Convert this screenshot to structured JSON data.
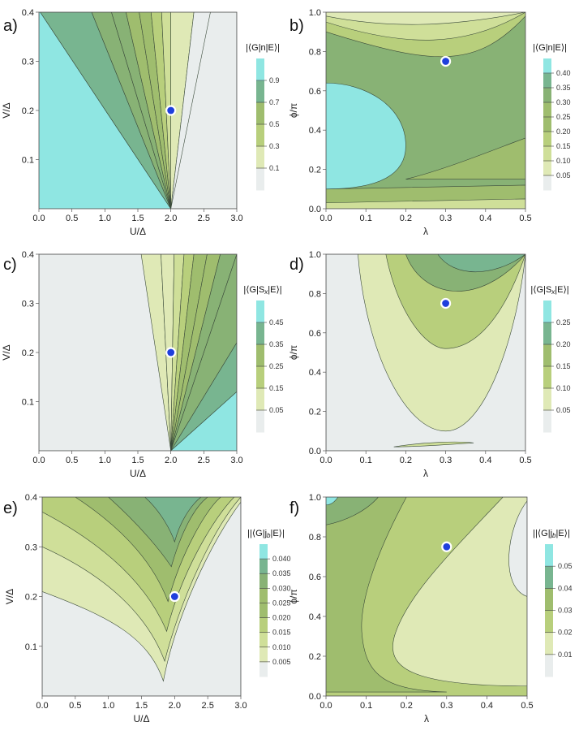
{
  "chart_data": [
    {
      "panel": "a)",
      "type": "heatmap",
      "subtype": "contour",
      "title": "|⟨G|n|E⟩|",
      "xlabel": "U/Δ",
      "ylabel": "V/Δ",
      "xlim": [
        0,
        3
      ],
      "ylim": [
        0,
        0.4
      ],
      "xticks": [
        "0.0",
        "0.5",
        "1.0",
        "1.5",
        "2.0",
        "2.5",
        "3.0"
      ],
      "yticks": [
        "0.1",
        "0.2",
        "0.3",
        "0.4"
      ],
      "colorbar_ticks": [
        "0.1",
        "0.3",
        "0.5",
        "0.7",
        "0.9"
      ],
      "marker": {
        "x": 2.0,
        "y": 0.2
      }
    },
    {
      "panel": "b)",
      "type": "heatmap",
      "subtype": "contour",
      "title": "|⟨G|n|E⟩|",
      "xlabel": "λ",
      "ylabel": "ϕ/π",
      "xlim": [
        0,
        0.5
      ],
      "ylim": [
        0,
        1.0
      ],
      "xticks": [
        "0.0",
        "0.1",
        "0.2",
        "0.3",
        "0.4",
        "0.5"
      ],
      "yticks": [
        "0.0",
        "0.2",
        "0.4",
        "0.6",
        "0.8",
        "1.0"
      ],
      "colorbar_ticks": [
        "0.05",
        "0.10",
        "0.15",
        "0.20",
        "0.25",
        "0.30",
        "0.35",
        "0.40"
      ],
      "marker": {
        "x": 0.3,
        "y": 0.75
      }
    },
    {
      "panel": "c)",
      "type": "heatmap",
      "subtype": "contour",
      "title": "|⟨G|S",
      "title_sub": "x",
      "title_end": "|E⟩|",
      "xlabel": "U/Δ",
      "ylabel": "V/Δ",
      "xlim": [
        0,
        3
      ],
      "ylim": [
        0,
        0.4
      ],
      "xticks": [
        "0.0",
        "0.5",
        "1.0",
        "1.5",
        "2.0",
        "2.5",
        "3.0"
      ],
      "yticks": [
        "0.1",
        "0.2",
        "0.3",
        "0.4"
      ],
      "colorbar_ticks": [
        "0.05",
        "0.15",
        "0.25",
        "0.35",
        "0.45"
      ],
      "marker": {
        "x": 2.0,
        "y": 0.2
      }
    },
    {
      "panel": "d)",
      "type": "heatmap",
      "subtype": "contour",
      "title": "|⟨G|S",
      "title_sub": "x",
      "title_end": "|E⟩|",
      "xlabel": "λ",
      "ylabel": "ϕ/π",
      "xlim": [
        0,
        0.5
      ],
      "ylim": [
        0,
        1.0
      ],
      "xticks": [
        "0.0",
        "0.1",
        "0.2",
        "0.3",
        "0.4",
        "0.5"
      ],
      "yticks": [
        "0.0",
        "0.2",
        "0.4",
        "0.6",
        "0.8",
        "1.0"
      ],
      "colorbar_ticks": [
        "0.05",
        "0.10",
        "0.15",
        "0.20",
        "0.25"
      ],
      "marker": {
        "x": 0.3,
        "y": 0.75
      }
    },
    {
      "panel": "e)",
      "type": "heatmap",
      "subtype": "contour",
      "title": "||⟨G|j",
      "title_sub": "b",
      "title_end": "|E⟩|",
      "xlabel": "U/Δ",
      "ylabel": "V/Δ",
      "xlim": [
        0,
        3
      ],
      "ylim": [
        0,
        0.4
      ],
      "xticks": [
        "0.0",
        "0.5",
        "1.0",
        "1.5",
        "2.0",
        "2.5",
        "3.0"
      ],
      "yticks": [
        "0.1",
        "0.2",
        "0.3",
        "0.4"
      ],
      "colorbar_ticks": [
        "0.005",
        "0.010",
        "0.015",
        "0.020",
        "0.025",
        "0.030",
        "0.035",
        "0.040"
      ],
      "marker": {
        "x": 2.0,
        "y": 0.2
      }
    },
    {
      "panel": "f)",
      "type": "heatmap",
      "subtype": "contour",
      "title": "||⟨G|j",
      "title_sub": "b",
      "title_end": "|E⟩|",
      "xlabel": "λ",
      "ylabel": "ϕ/π",
      "xlim": [
        0,
        0.5
      ],
      "ylim": [
        0,
        1.0
      ],
      "xticks": [
        "0.0",
        "0.1",
        "0.2",
        "0.3",
        "0.4",
        "0.5"
      ],
      "yticks": [
        "0.0",
        "0.2",
        "0.4",
        "0.6",
        "0.8",
        "1.0"
      ],
      "colorbar_ticks": [
        "0.01",
        "0.02",
        "0.03",
        "0.04",
        "0.05"
      ],
      "marker": {
        "x": 0.3,
        "y": 0.75
      }
    }
  ],
  "colors": {
    "low": "#e9eded",
    "l1": "#dfe9b6",
    "l2": "#cfdf99",
    "l3": "#b8cf7c",
    "l4": "#9fbd6e",
    "l5": "#88b275",
    "l6": "#78b590",
    "high": "#8fe6e2",
    "marker_fill": "#1f3fdd",
    "marker_ring": "#ffffff",
    "contour_line": "#3a4a3a"
  }
}
